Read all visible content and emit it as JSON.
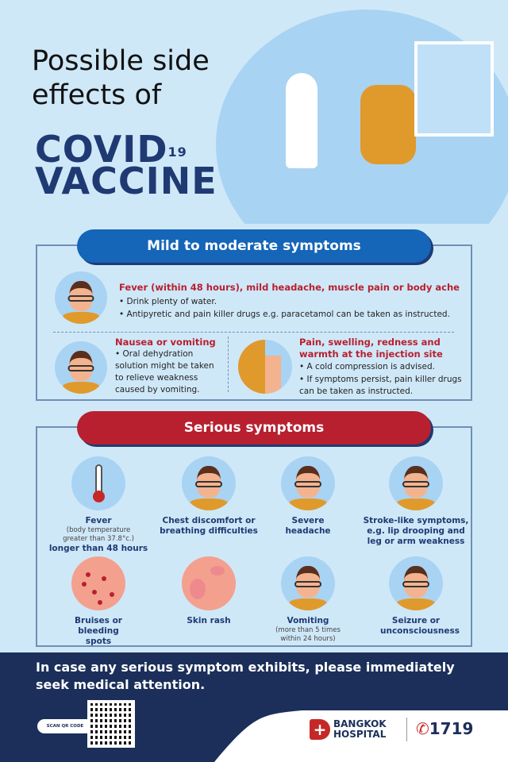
{
  "header": {
    "title_line1": "Possible side",
    "title_line2": "effects of",
    "covid": "COVID",
    "covid_sup": "19",
    "vaccine": "VACCINE"
  },
  "mild": {
    "banner": "Mild to moderate symptoms",
    "color": "#1565b8",
    "items": [
      {
        "heading": "Fever (within 48 hours), mild headache, muscle pain or body ache",
        "bullets": [
          "• Drink plenty of water.",
          "• Antipyretic and pain killer drugs e.g. paracetamol can be taken as instructed."
        ],
        "icon": "fever-headache-person-icon"
      },
      {
        "heading": "Nausea or vomiting",
        "bullets": [
          "• Oral dehydration solution might be taken to relieve weakness caused by vomiting."
        ],
        "icon": "vomiting-person-icon"
      },
      {
        "heading": "Pain, swelling, redness and warmth at the injection site",
        "bullets": [
          "• A  cold compression is advised.",
          "• If symptoms persist, pain killer drugs can be taken as instructed."
        ],
        "icon": "injection-site-pain-icon"
      }
    ]
  },
  "serious": {
    "banner": "Serious symptoms",
    "color": "#b8202f",
    "items": [
      {
        "label": "Fever",
        "sub": "(body temperature greater than 37.8°c.)",
        "label2": "longer than 48 hours",
        "icon": "thermometer-icon"
      },
      {
        "label": "Chest discomfort or breathing difficulties",
        "icon": "chest-discomfort-icon"
      },
      {
        "label": "Severe headache",
        "icon": "headache-icon"
      },
      {
        "label": "Stroke-like symptoms, e.g. lip drooping and leg or arm weakness",
        "icon": "stroke-icon"
      },
      {
        "label": "Bruises or bleeding spots",
        "icon": "bruises-icon"
      },
      {
        "label": "Skin rash",
        "icon": "skin-rash-icon"
      },
      {
        "label": "Vomiting",
        "sub": "(more than 5 times within 24 hours)",
        "icon": "vomiting-icon"
      },
      {
        "label": "Seizure or unconsciousness",
        "icon": "seizure-icon"
      }
    ]
  },
  "footer": {
    "message": "In case any serious symptom exhibits, please immediately seek medical attention.",
    "scan": "SCAN QR CODE",
    "brand1": "BANGKOK",
    "brand2": "HOSPITAL",
    "phone": "1719",
    "navy": "#1b2f5a"
  }
}
